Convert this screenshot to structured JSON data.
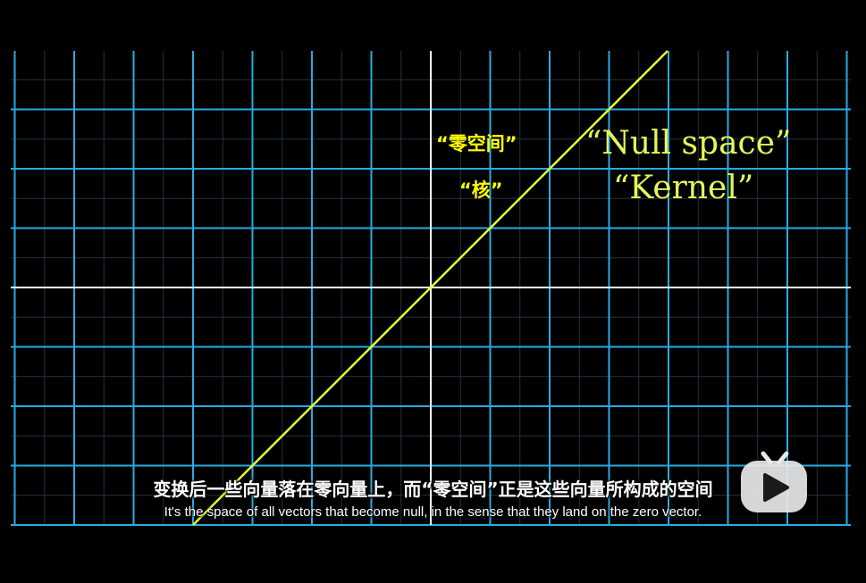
{
  "labels": {
    "null_space_cn": "“零空间”",
    "kernel_cn": "“核”",
    "null_space_en": "“Null space”",
    "kernel_en": "“Kernel”"
  },
  "subtitles": {
    "chinese": "变换后一些向量落在零向量上，而“零空间”正是这些向量所构成的空间",
    "english": "It's the space of all vectors that become null, in the sense that they land on the zero vector."
  },
  "colors": {
    "background": "#000000",
    "grid_major": "#29abe2",
    "grid_minor": "#23343d",
    "axes": "#ffffff",
    "null_line": "#e6ff33",
    "label_cn": "#ffff00",
    "label_en": "#e6f55a"
  },
  "watermark": {
    "icon": "play-tv-icon"
  }
}
